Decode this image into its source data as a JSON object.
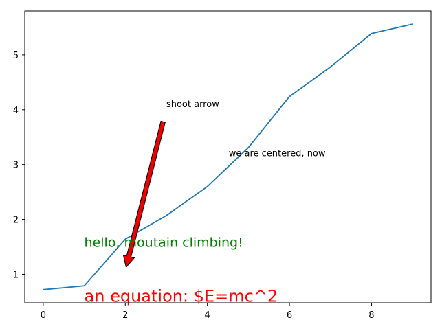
{
  "chart_data": {
    "type": "line",
    "title": "",
    "xlabel": "",
    "ylabel": "",
    "xlim": [
      -0.45,
      9.45
    ],
    "ylim": [
      0.48,
      5.8
    ],
    "grid": false,
    "x_ticks": [
      {
        "value": 0,
        "label": "0"
      },
      {
        "value": 2,
        "label": "2"
      },
      {
        "value": 4,
        "label": "4"
      },
      {
        "value": 6,
        "label": "6"
      },
      {
        "value": 8,
        "label": "8"
      }
    ],
    "y_ticks": [
      {
        "value": 1,
        "label": "1"
      },
      {
        "value": 2,
        "label": "2"
      },
      {
        "value": 3,
        "label": "3"
      },
      {
        "value": 4,
        "label": "4"
      },
      {
        "value": 5,
        "label": "5"
      }
    ],
    "series": [
      {
        "color": "#1f77b4",
        "x": [
          0,
          1,
          2,
          3,
          4,
          5,
          6,
          7,
          8,
          9
        ],
        "values": [
          0.72,
          0.79,
          1.64,
          2.07,
          2.6,
          3.31,
          4.24,
          4.78,
          5.39,
          5.56
        ]
      }
    ],
    "annotations": [
      {
        "id": "shoot",
        "text": "shoot arrow",
        "color": "#000000",
        "x": 3.0,
        "y": 4.05,
        "anchor": "start",
        "arrow": {
          "from": [
            2.92,
            3.78
          ],
          "to": [
            2.02,
            1.13
          ],
          "fill": "#ee0000",
          "edge": "#000000"
        }
      },
      {
        "id": "centered",
        "text": "we are centered, now",
        "color": "#000000",
        "x": 5.7,
        "y": 3.15,
        "anchor": "middle"
      },
      {
        "id": "climbing",
        "text": "hello, moutain climbing!",
        "color": "#008000",
        "x": 1.0,
        "y": 1.5,
        "anchor": "start"
      },
      {
        "id": "equation",
        "text": "an equation: $E=mc^2",
        "color": "#ff0000",
        "x": 1.0,
        "y": 0.5,
        "anchor": "start"
      }
    ]
  }
}
